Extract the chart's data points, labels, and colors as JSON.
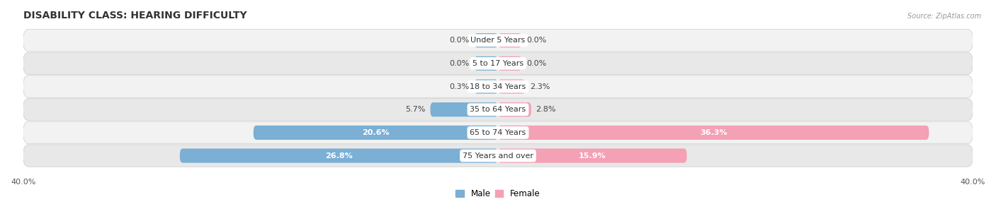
{
  "title": "DISABILITY CLASS: HEARING DIFFICULTY",
  "source": "Source: ZipAtlas.com",
  "categories": [
    "Under 5 Years",
    "5 to 17 Years",
    "18 to 34 Years",
    "35 to 64 Years",
    "65 to 74 Years",
    "75 Years and over"
  ],
  "male_values": [
    0.0,
    0.0,
    0.3,
    5.7,
    20.6,
    26.8
  ],
  "female_values": [
    0.0,
    0.0,
    2.3,
    2.8,
    36.3,
    15.9
  ],
  "max_val": 40.0,
  "male_color": "#7bafd4",
  "female_color": "#f4a0b5",
  "male_label": "Male",
  "female_label": "Female",
  "bg_color": "#ffffff",
  "row_bg_light": "#f0f0f0",
  "row_bg_dark": "#e0e0e0",
  "title_fontsize": 10,
  "label_fontsize": 8,
  "axis_label_fontsize": 8,
  "min_bar_display": 2.0,
  "value_label_inside_threshold": 15.0
}
